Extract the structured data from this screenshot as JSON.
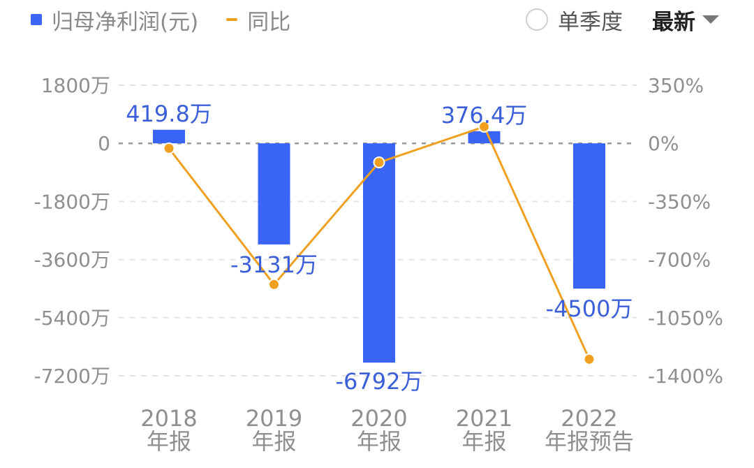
{
  "legend": {
    "bar_series": "归母净利润(元)",
    "line_series": "同比"
  },
  "controls": {
    "single_quarter": "单季度",
    "latest": "最新"
  },
  "colors": {
    "bar": "#3a64f5",
    "line": "#f0a020",
    "label": "#3a5fd8"
  },
  "chart_data": {
    "type": "bar",
    "categories": [
      [
        "2018",
        "年报"
      ],
      [
        "2019",
        "年报"
      ],
      [
        "2020",
        "年报"
      ],
      [
        "2021",
        "年报"
      ],
      [
        "2022",
        "年报预告"
      ]
    ],
    "series": [
      {
        "name": "归母净利润(元)",
        "type": "bar",
        "axis": "left",
        "values": [
          419.8,
          -3131,
          -6792,
          376.4,
          -4500
        ],
        "labels": [
          "419.8万",
          "-3131万",
          "-6792万",
          "376.4万",
          "-4500万"
        ]
      },
      {
        "name": "同比",
        "type": "line",
        "axis": "right",
        "values": [
          -30,
          -850,
          -115,
          100,
          -1300
        ]
      }
    ],
    "left_axis": {
      "ticks": [
        1800,
        0,
        -1800,
        -3600,
        -5400,
        -7200
      ],
      "tick_labels": [
        "1800万",
        "0",
        "-1800万",
        "-3600万",
        "-5400万",
        "-7200万"
      ],
      "ylim": [
        -7200,
        1800
      ]
    },
    "right_axis": {
      "ticks": [
        350,
        0,
        -350,
        -700,
        -1050,
        -1400
      ],
      "tick_labels": [
        "350%",
        "0%",
        "-350%",
        "-700%",
        "-1050%",
        "-1400%"
      ],
      "ylim": [
        -1400,
        350
      ]
    },
    "grid": true
  }
}
